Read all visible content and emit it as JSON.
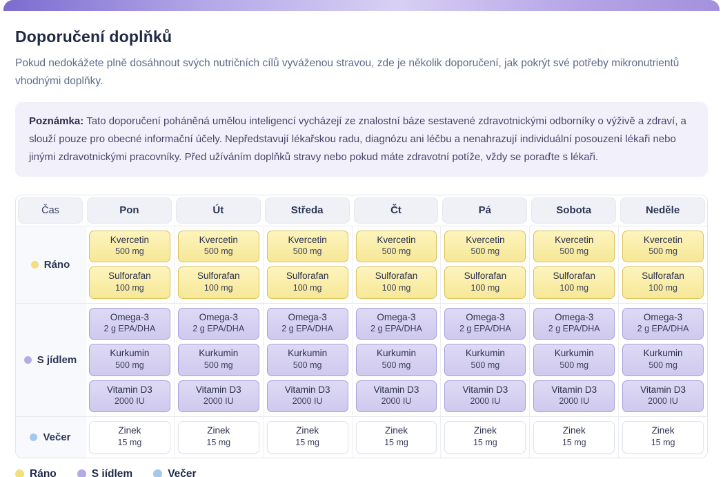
{
  "page": {
    "title": "Doporučení doplňků",
    "subtitle": "Pokud nedokážete plně dosáhnout svých nutričních cílů vyváženou stravou, zde je několik doporučení, jak pokrýt své potřeby mikronutrientů vhodnými doplňky."
  },
  "note": {
    "label": "Poznámka:",
    "text": "Tato doporučení poháněná umělou inteligencí vycházejí ze znalostní báze sestavené zdravotnickými odborníky o výživě a zdraví, a slouží pouze pro obecné informační účely. Nepředstavují lékařskou radu, diagnózu ani léčbu a nenahrazují individuální posouzení lékaři nebo jinými zdravotnickými pracovníky. Před užíváním doplňků stravy nebo pokud máte zdravotní potíže, vždy se poraďte s lékaři."
  },
  "schedule": {
    "time_header": "Čas",
    "days": [
      "Pon",
      "Út",
      "Středa",
      "Čt",
      "Pá",
      "Sobota",
      "Neděle"
    ],
    "rows": [
      {
        "id": "morning",
        "label": "Ráno",
        "dot_color": "#f3df7d",
        "supplements": [
          {
            "name": "Kvercetin",
            "dose": "500 mg"
          },
          {
            "name": "Sulforafan",
            "dose": "100 mg"
          }
        ]
      },
      {
        "id": "with-food",
        "label": "S jídlem",
        "dot_color": "#b3abe7",
        "supplements": [
          {
            "name": "Omega-3",
            "dose": "2 g EPA/DHA"
          },
          {
            "name": "Kurkumin",
            "dose": "500 mg"
          },
          {
            "name": "Vitamin D3",
            "dose": "2000 IU"
          }
        ]
      },
      {
        "id": "evening",
        "label": "Večer",
        "dot_color": "#a6c8ee",
        "supplements": [
          {
            "name": "Zinek",
            "dose": "15 mg"
          }
        ]
      }
    ]
  },
  "legend": {
    "items": [
      {
        "id": "morning",
        "label": "Ráno",
        "color": "#f3df7d"
      },
      {
        "id": "with-food",
        "label": "S jídlem",
        "color": "#b3abe7"
      },
      {
        "id": "evening",
        "label": "Večer",
        "color": "#a6c8ee"
      }
    ]
  },
  "colors": {
    "accent_start": "#7b6ccf",
    "accent_mid": "#d8d0f4",
    "accent_end": "#a391dd",
    "pill_morning_border": "#dcc257",
    "pill_with_food_border": "#a7a0dd",
    "pill_evening_border": "#e0e3eb",
    "note_background": "#f2f0fa",
    "header_cell_background": "#f0f1f6"
  }
}
